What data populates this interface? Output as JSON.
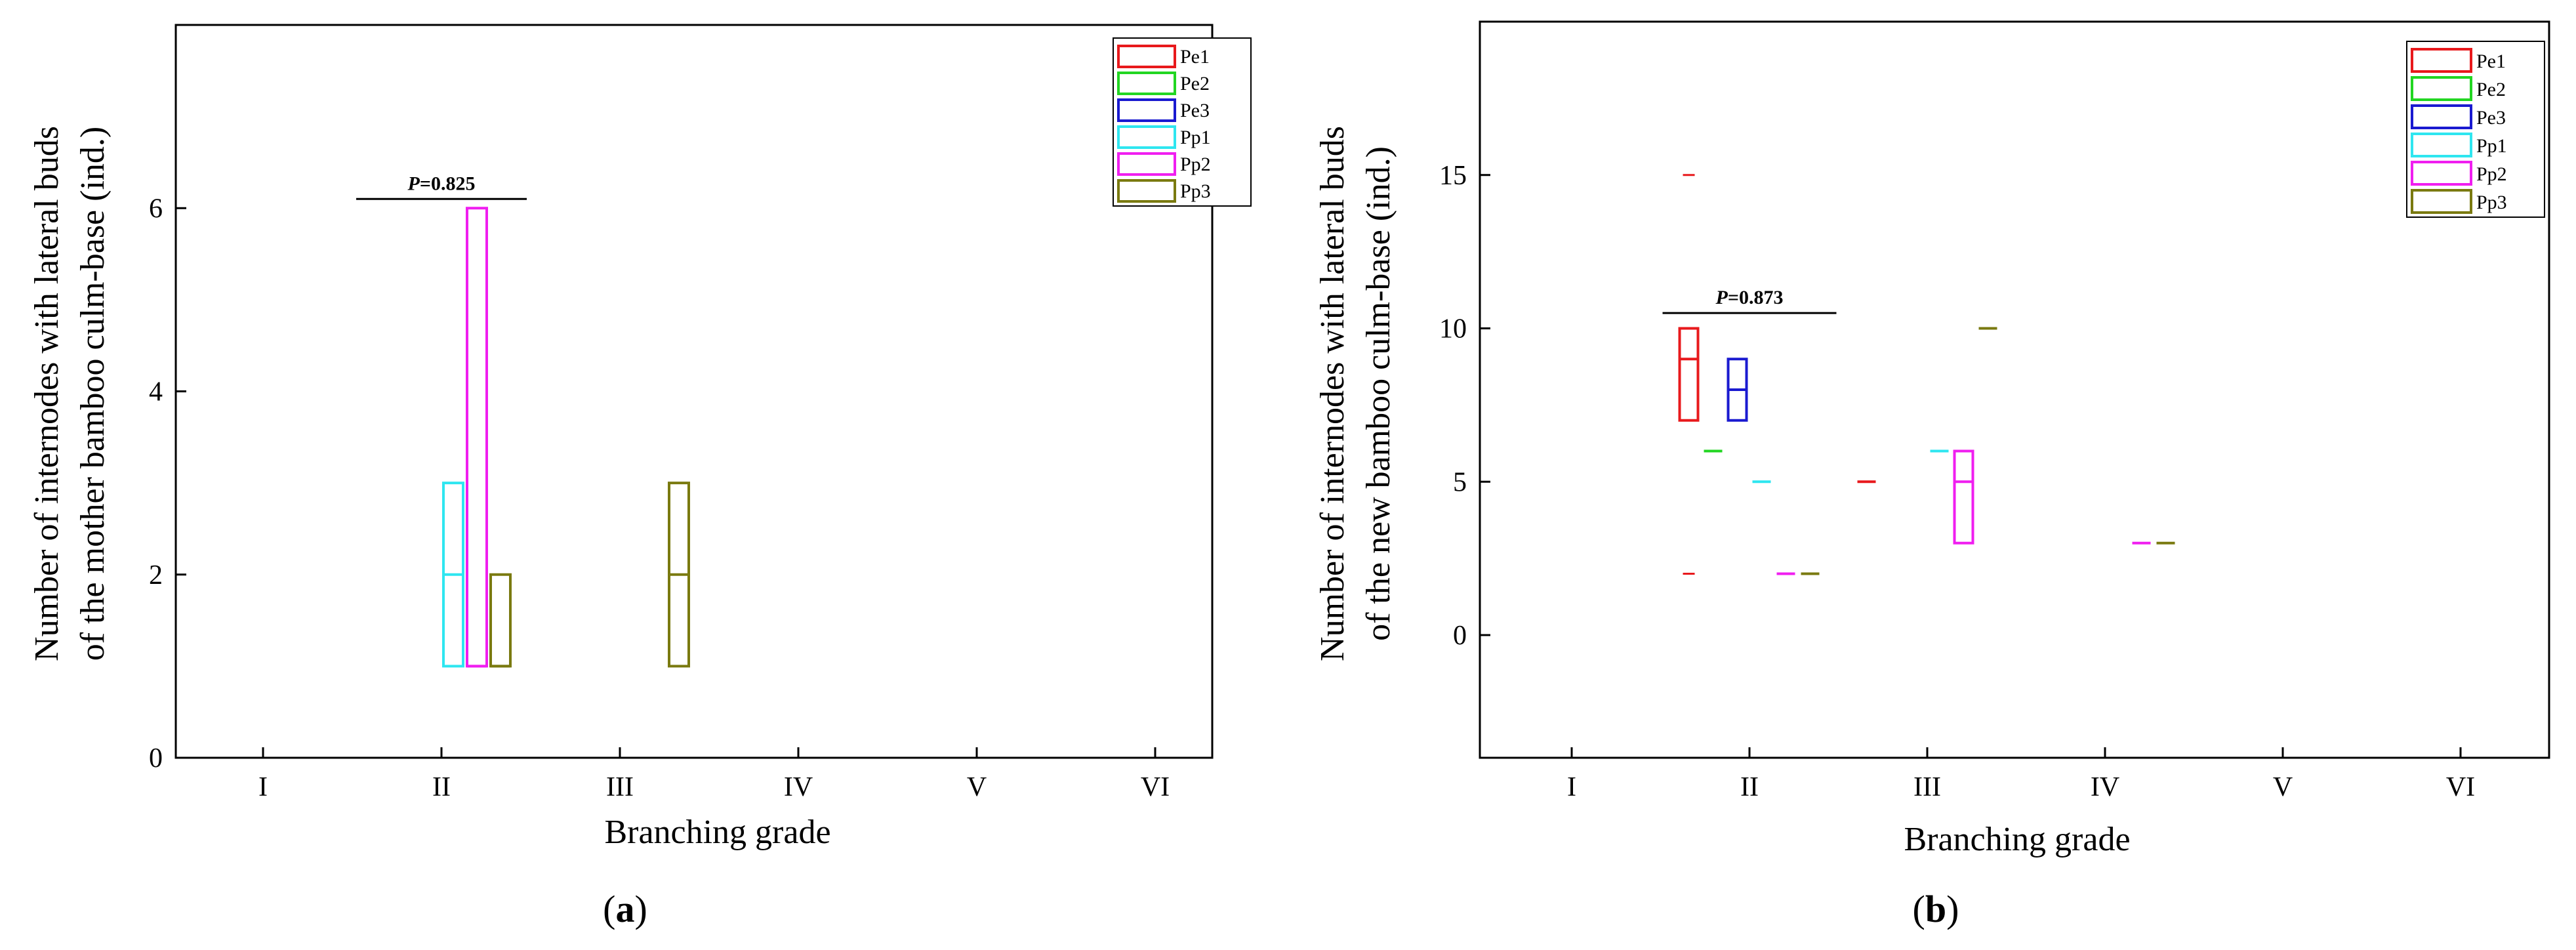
{
  "figure": {
    "panel_labels": {
      "a": "a",
      "b": "b"
    }
  },
  "chart_data": [
    {
      "id": "a",
      "type": "box",
      "xlabel": "Branching grade",
      "ylabel_line1": "Number of internodes with lateral buds",
      "ylabel_line2": "of the mother bamboo culm-base (ind.)",
      "categories": [
        "I",
        "II",
        "III",
        "IV",
        "V",
        "VI"
      ],
      "ylim": [
        0,
        8
      ],
      "yticks": [
        0,
        2,
        4,
        6
      ],
      "legend": [
        "Pe1",
        "Pe2",
        "Pe3",
        "Pp1",
        "Pp2",
        "Pp3"
      ],
      "legend_position": "top-right",
      "grid": false,
      "annotation": {
        "label": "P",
        "text": "=0.825",
        "category": "II",
        "y": 6.1
      },
      "boxes": [
        {
          "series": "Pp1",
          "category": "II",
          "min": 1,
          "q1": 1,
          "median": 2,
          "q3": 3,
          "max": 3
        },
        {
          "series": "Pp2",
          "category": "II",
          "min": 1,
          "q1": 1,
          "median": 1,
          "q3": 6,
          "max": 6
        },
        {
          "series": "Pp3",
          "category": "II",
          "min": 1,
          "q1": 1,
          "median": 1,
          "q3": 2,
          "max": 2
        },
        {
          "series": "Pp3",
          "category": "III",
          "min": 1,
          "q1": 1,
          "median": 2,
          "q3": 3,
          "max": 3
        }
      ],
      "outliers": []
    },
    {
      "id": "b",
      "type": "box",
      "xlabel": "Branching grade",
      "ylabel_line1": "Number of internodes with lateral buds",
      "ylabel_line2": "of the new bamboo culm-base (ind.)",
      "categories": [
        "I",
        "II",
        "III",
        "IV",
        "V",
        "VI"
      ],
      "ylim": [
        -4,
        20
      ],
      "yticks": [
        0,
        5,
        10,
        15
      ],
      "legend": [
        "Pe1",
        "Pe2",
        "Pe3",
        "Pp1",
        "Pp2",
        "Pp3"
      ],
      "legend_position": "top-right",
      "grid": false,
      "annotation": {
        "label": "P",
        "text": "=0.873",
        "category": "II",
        "y": 10.5
      },
      "boxes": [
        {
          "series": "Pe1",
          "category": "II",
          "min": 7,
          "q1": 7,
          "median": 9,
          "q3": 10,
          "max": 10
        },
        {
          "series": "Pe2",
          "category": "II",
          "min": 6,
          "q1": 6,
          "median": 6,
          "q3": 6,
          "max": 6
        },
        {
          "series": "Pe3",
          "category": "II",
          "min": 7,
          "q1": 7,
          "median": 8,
          "q3": 9,
          "max": 9
        },
        {
          "series": "Pp1",
          "category": "II",
          "min": 5,
          "q1": 5,
          "median": 5,
          "q3": 5,
          "max": 5
        },
        {
          "series": "Pp2",
          "category": "II",
          "min": 2,
          "q1": 2,
          "median": 2,
          "q3": 2,
          "max": 2
        },
        {
          "series": "Pp3",
          "category": "II",
          "min": 2,
          "q1": 2,
          "median": 2,
          "q3": 2,
          "max": 2
        },
        {
          "series": "Pe1",
          "category": "III",
          "min": 5,
          "q1": 5,
          "median": 5,
          "q3": 5,
          "max": 5
        },
        {
          "series": "Pp1",
          "category": "III",
          "min": 6,
          "q1": 6,
          "median": 6,
          "q3": 6,
          "max": 6
        },
        {
          "series": "Pp2",
          "category": "III",
          "min": 3,
          "q1": 3,
          "median": 5,
          "q3": 6,
          "max": 6
        },
        {
          "series": "Pp3",
          "category": "III",
          "min": 10,
          "q1": 10,
          "median": 10,
          "q3": 10,
          "max": 10
        },
        {
          "series": "Pp2",
          "category": "IV",
          "min": 3,
          "q1": 3,
          "median": 3,
          "q3": 3,
          "max": 3
        },
        {
          "series": "Pp3",
          "category": "IV",
          "min": 3,
          "q1": 3,
          "median": 3,
          "q3": 3,
          "max": 3
        }
      ],
      "outliers": [
        {
          "series": "Pe1",
          "category": "II",
          "y": 15
        },
        {
          "series": "Pe1",
          "category": "II",
          "y": 2
        }
      ]
    }
  ],
  "series_colors": {
    "Pe1": "#e8191c",
    "Pe2": "#22d622",
    "Pe3": "#1a1ad0",
    "Pp1": "#2ee6f0",
    "Pp2": "#f01ef0",
    "Pp3": "#7a7a10"
  }
}
